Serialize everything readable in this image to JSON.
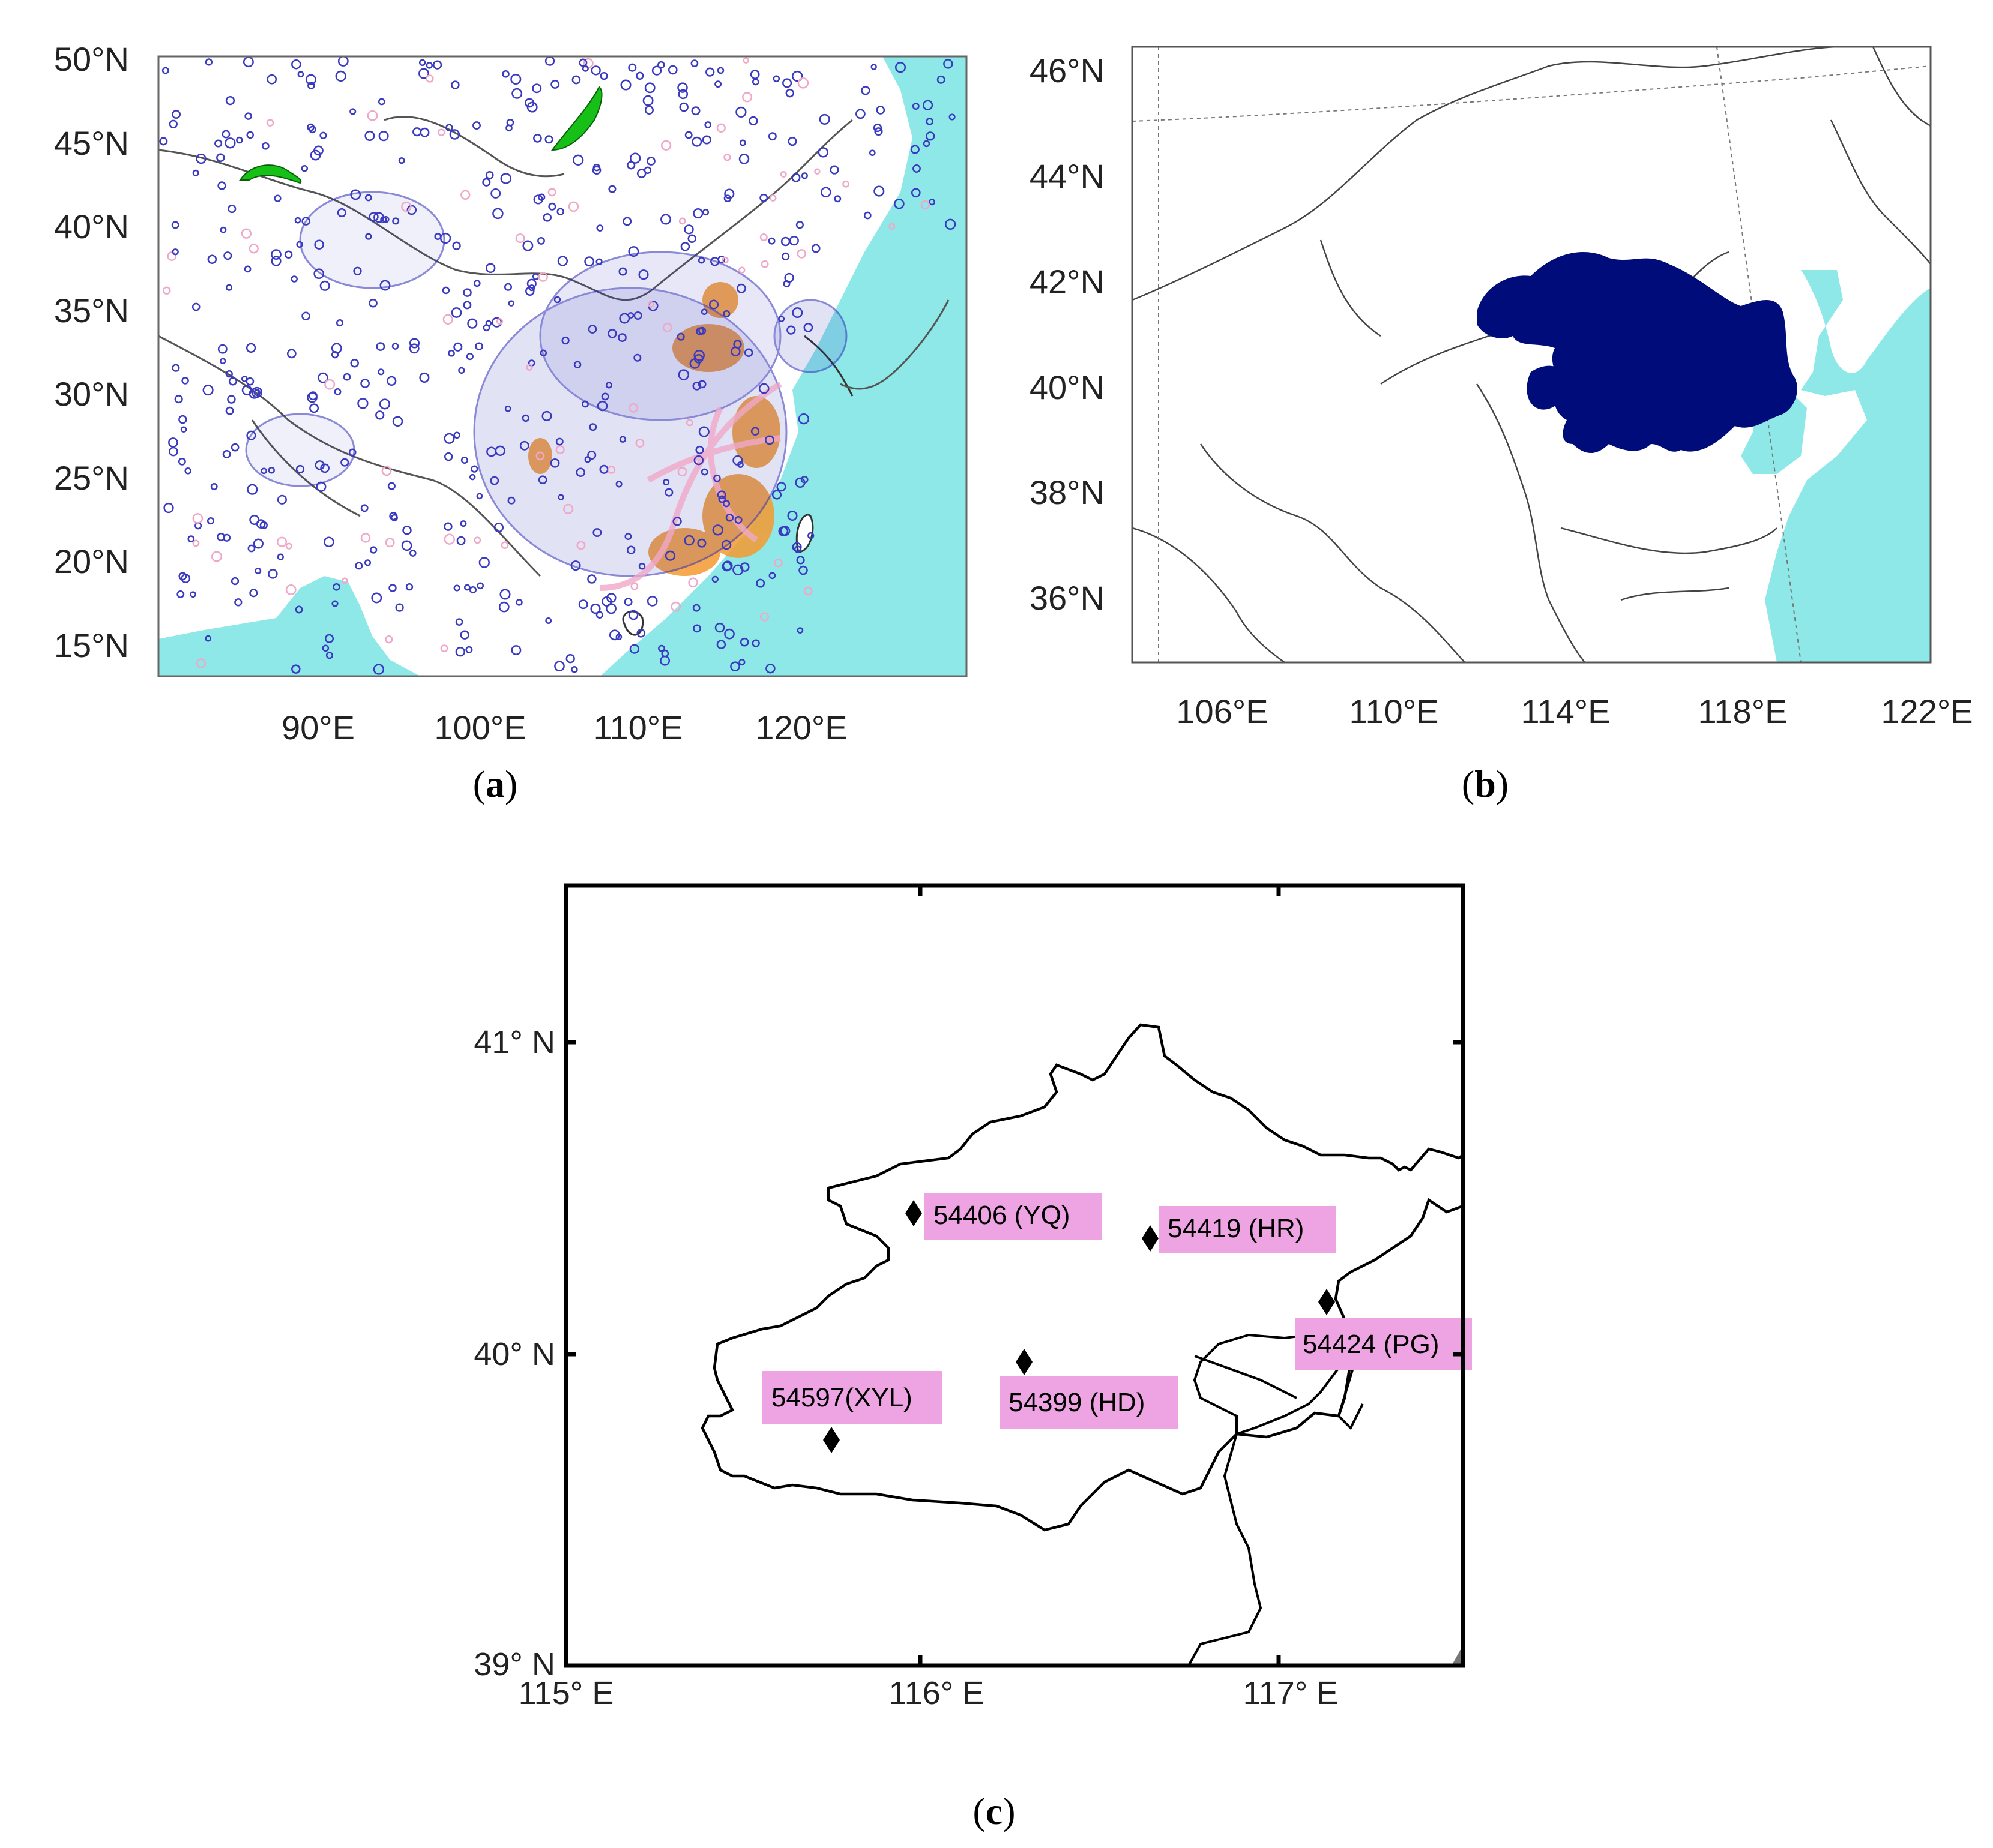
{
  "panels": {
    "a": {
      "caption_letter": "a",
      "y_ticks": [
        "50°N",
        "45°N",
        "40°N",
        "35°N",
        "30°N",
        "25°N",
        "20°N",
        "15°N"
      ],
      "x_ticks": [
        "90°E",
        "100°E",
        "110°E",
        "120°E"
      ],
      "colors": {
        "ocean": "#8EE8E8",
        "stations_blue": "#2A2AB8",
        "stations_pink": "#F0A8C8",
        "stations_orange": "#F59A30",
        "highlight_green": "#16C016",
        "border": "#555555"
      }
    },
    "b": {
      "caption_letter": "b",
      "y_ticks": [
        "46°N",
        "44°N",
        "42°N",
        "40°N",
        "38°N",
        "36°N"
      ],
      "x_ticks": [
        "106°E",
        "110°E",
        "114°E",
        "118°E",
        "122°E"
      ],
      "colors": {
        "ocean": "#8EE8E8",
        "domain_fill": "#000C7A",
        "border": "#444444"
      }
    },
    "c": {
      "caption_letter": "c",
      "y_ticks": [
        "41° N",
        "40° N",
        "39° N"
      ],
      "x_ticks": [
        "115° E",
        "116° E",
        "117° E"
      ],
      "colors": {
        "label_bg": "#EEA3E2",
        "marker": "#000000",
        "outline": "#000000"
      },
      "stations": [
        {
          "label": "54406 (YQ)"
        },
        {
          "label": "54419 (HR)"
        },
        {
          "label": "54424 (PG)"
        },
        {
          "label": "54597(XYL)"
        },
        {
          "label": "54399 (HD)"
        }
      ]
    }
  }
}
